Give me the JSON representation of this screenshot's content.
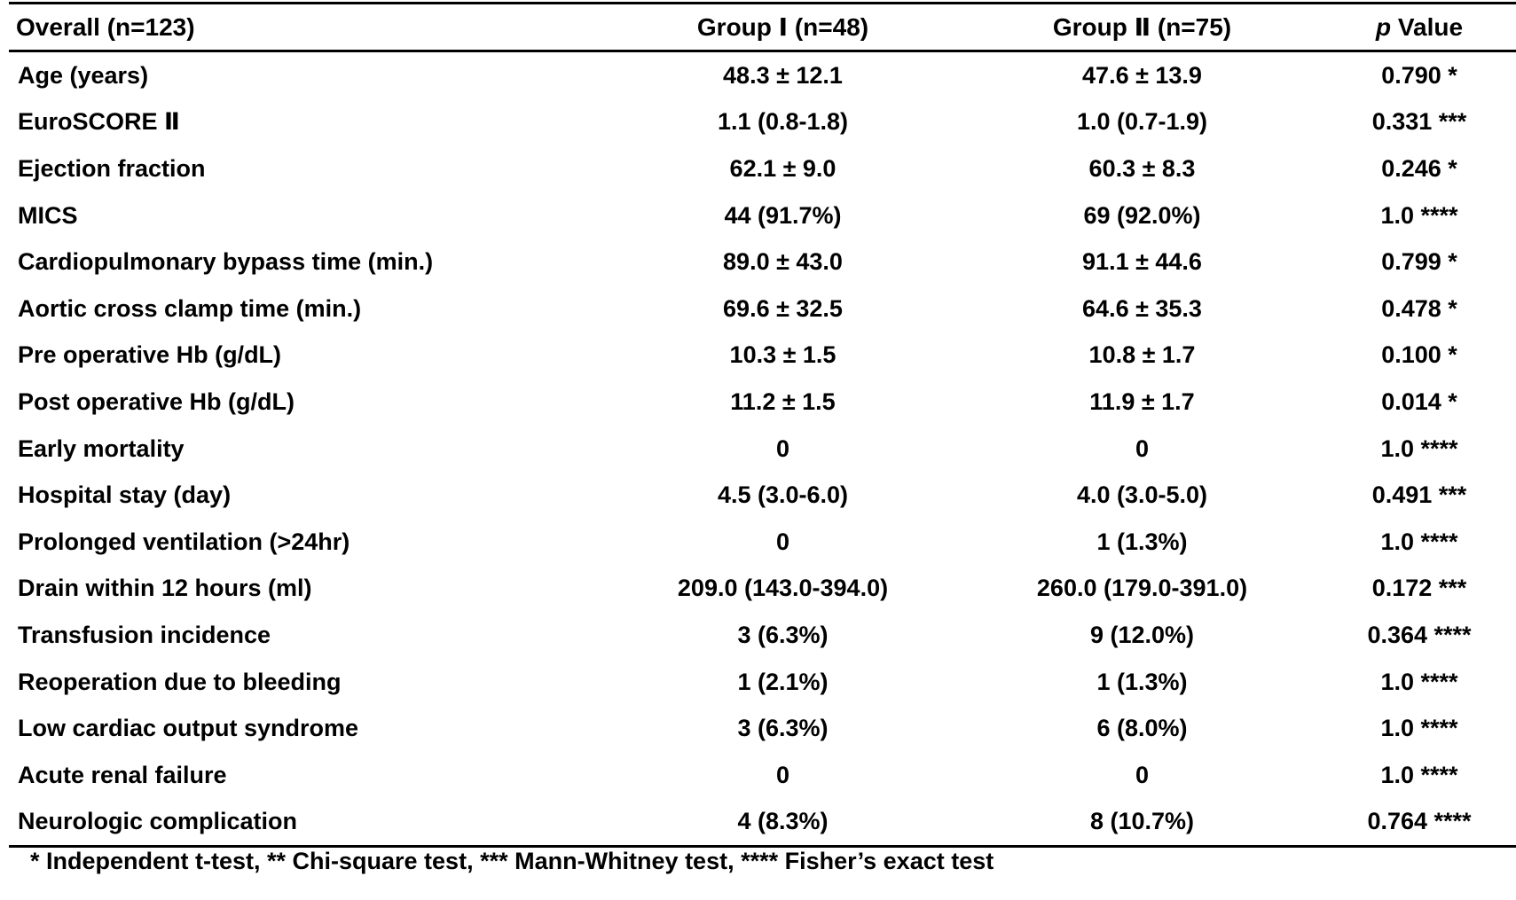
{
  "header": {
    "col1": "Overall (n=123)",
    "col2": "Group Ⅰ (n=48)",
    "col3": "Group Ⅱ (n=75)",
    "col4_italic": "p",
    "col4_rest": "Value"
  },
  "rows": [
    {
      "label": "Age (years)",
      "g1": "48.3 ± 12.1",
      "g2": "47.6 ± 13.9",
      "p": "0.790 *"
    },
    {
      "label": "EuroSCORE Ⅱ",
      "g1": "1.1 (0.8-1.8)",
      "g2": "1.0 (0.7-1.9)",
      "p": "0.331 ***"
    },
    {
      "label": "Ejection fraction",
      "g1": "62.1 ± 9.0",
      "g2": "60.3 ± 8.3",
      "p": "0.246 *"
    },
    {
      "label": "MICS",
      "g1": "44 (91.7%)",
      "g2": "69 (92.0%)",
      "p": "1.0 ****"
    },
    {
      "label": "Cardiopulmonary bypass time (min.)",
      "g1": "89.0 ± 43.0",
      "g2": "91.1 ± 44.6",
      "p": "0.799 *"
    },
    {
      "label": "Aortic cross clamp time (min.)",
      "g1": "69.6 ± 32.5",
      "g2": "64.6 ± 35.3",
      "p": "0.478 *"
    },
    {
      "label": "Pre operative Hb (g/dL)",
      "g1": "10.3 ± 1.5",
      "g2": "10.8 ± 1.7",
      "p": "0.100 *"
    },
    {
      "label": "Post operative Hb (g/dL)",
      "g1": "11.2 ± 1.5",
      "g2": "11.9 ± 1.7",
      "p": "0.014 *"
    },
    {
      "label": "Early mortality",
      "g1": "0",
      "g2": "0",
      "p": "1.0 ****"
    },
    {
      "label": "Hospital stay (day)",
      "g1": "4.5 (3.0-6.0)",
      "g2": "4.0 (3.0-5.0)",
      "p": "0.491 ***"
    },
    {
      "label": "Prolonged ventilation (>24hr)",
      "g1": "0",
      "g2": "1 (1.3%)",
      "p": "1.0 ****"
    },
    {
      "label": "Drain within 12 hours (ml)",
      "g1": "209.0 (143.0-394.0)",
      "g2": "260.0 (179.0-391.0)",
      "p": "0.172 ***"
    },
    {
      "label": "Transfusion incidence",
      "g1": "3 (6.3%)",
      "g2": "9 (12.0%)",
      "p": "0.364 ****"
    },
    {
      "label": "Reoperation due to bleeding",
      "g1": "1 (2.1%)",
      "g2": "1 (1.3%)",
      "p": "1.0 ****"
    },
    {
      "label": "Low cardiac output syndrome",
      "g1": "3 (6.3%)",
      "g2": "6 (8.0%)",
      "p": "1.0 ****"
    },
    {
      "label": "Acute renal failure",
      "g1": "0",
      "g2": "0",
      "p": "1.0 ****"
    },
    {
      "label": "Neurologic complication",
      "g1": "4 (8.3%)",
      "g2": "8 (10.7%)",
      "p": "0.764 ****"
    }
  ],
  "footnote": "* Independent t-test, ** Chi-square test, *** Mann-Whitney test, **** Fisher’s exact test"
}
